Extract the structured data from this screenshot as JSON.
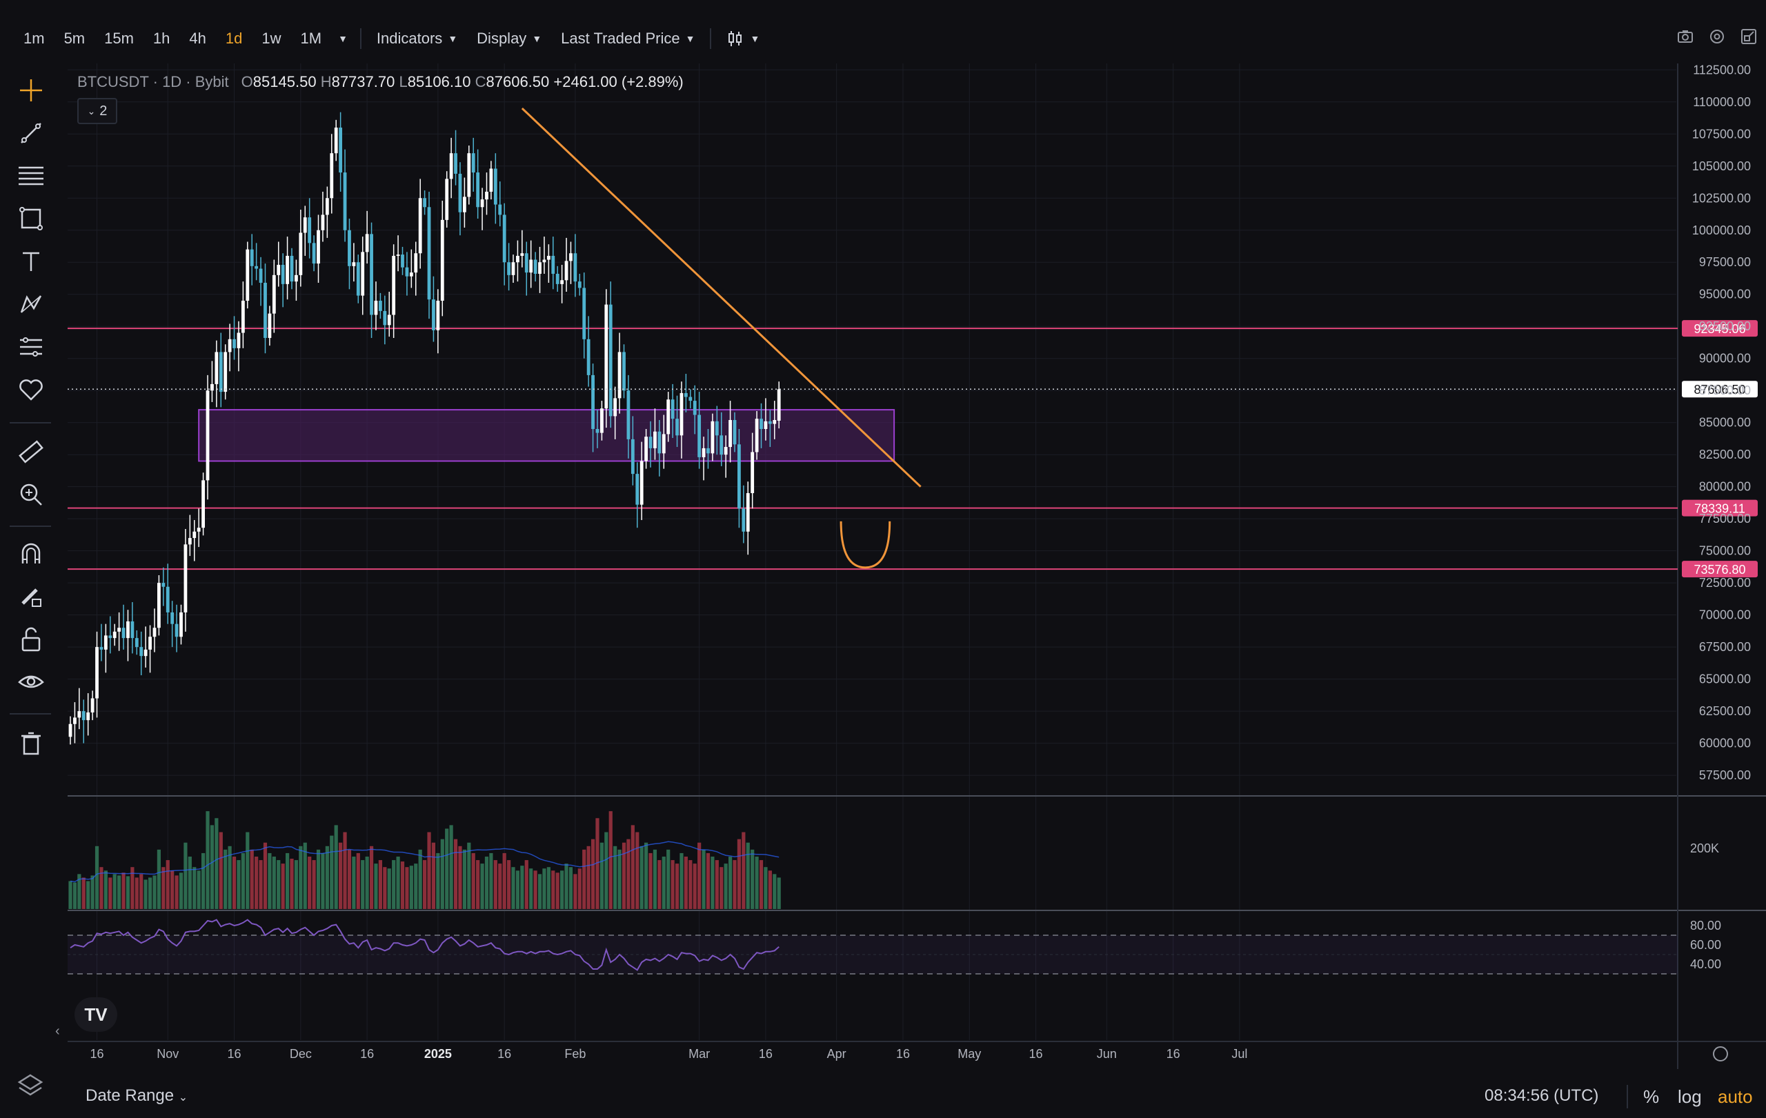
{
  "toolbar": {
    "timeframes": [
      "1m",
      "5m",
      "15m",
      "1h",
      "4h",
      "1d",
      "1w",
      "1M"
    ],
    "active_timeframe": "1d",
    "indicators_label": "Indicators",
    "display_label": "Display",
    "price_source_label": "Last Traded Price"
  },
  "legend": {
    "symbol": "BTCUSDT",
    "interval": "1D",
    "exchange": "Bybit",
    "open_label": "O",
    "open": "85145.50",
    "high_label": "H",
    "high": "87737.70",
    "low_label": "L",
    "low": "85106.10",
    "close_label": "C",
    "close": "87606.50",
    "change": "+2461.00 (+2.89%)",
    "collapse_count": "2"
  },
  "colors": {
    "background": "#0f0f13",
    "up_candle": "#ffffff",
    "down_candle": "#4fb3d0",
    "trendline": "#f0953a",
    "level_line": "#e0457a",
    "zone_fill": "#4a1f5e",
    "zone_border": "#9b3fcf",
    "rsi_line": "#7e57c2",
    "volume_up": "#2d6a4f",
    "volume_down": "#8b2e3a",
    "accent": "#f0a52a"
  },
  "chart_data": {
    "type": "candlestick",
    "y_axis_ticks": [
      "112500.00",
      "110000.00",
      "107500.00",
      "105000.00",
      "102500.00",
      "100000.00",
      "97500.00",
      "95000.00",
      "92500.00",
      "90000.00",
      "87500.00",
      "85000.00",
      "82500.00",
      "80000.00",
      "77500.00",
      "75000.00",
      "72500.00",
      "70000.00",
      "67500.00",
      "65000.00",
      "62500.00",
      "60000.00",
      "57500.00"
    ],
    "ylim": [
      56000,
      113000
    ],
    "x_axis_ticks": [
      {
        "label": "16",
        "date": "2024-10-16"
      },
      {
        "label": "Nov",
        "date": "2024-11-01"
      },
      {
        "label": "16",
        "date": "2024-11-16"
      },
      {
        "label": "Dec",
        "date": "2024-12-01"
      },
      {
        "label": "16",
        "date": "2024-12-16"
      },
      {
        "label": "2025",
        "date": "2025-01-01"
      },
      {
        "label": "16",
        "date": "2025-01-16"
      },
      {
        "label": "Feb",
        "date": "2025-02-01"
      },
      {
        "label": "Mar",
        "date": "2025-03-01"
      },
      {
        "label": "16",
        "date": "2025-03-16"
      },
      {
        "label": "Apr",
        "date": "2025-04-01"
      },
      {
        "label": "16",
        "date": "2025-04-16"
      },
      {
        "label": "May",
        "date": "2025-05-01"
      },
      {
        "label": "16",
        "date": "2025-05-16"
      },
      {
        "label": "Jun",
        "date": "2025-06-01"
      },
      {
        "label": "16",
        "date": "2025-06-16"
      },
      {
        "label": "Jul",
        "date": "2025-07-01"
      }
    ],
    "start_date": "2024-10-10",
    "closes": [
      61500,
      62000,
      62500,
      61800,
      62400,
      63500,
      67500,
      67300,
      68400,
      68200,
      68700,
      69000,
      68200,
      69500,
      68200,
      67500,
      66800,
      67300,
      68300,
      69000,
      72500,
      72200,
      70200,
      69300,
      68300,
      70200,
      75500,
      76000,
      76500,
      76800,
      80500,
      87500,
      88000,
      90500,
      87400,
      90500,
      91500,
      90800,
      92000,
      94500,
      98500,
      97200,
      97000,
      95900,
      91600,
      93500,
      96500,
      97300,
      95800,
      98000,
      96000,
      96500,
      99800,
      101000,
      99000,
      97400,
      100000,
      101200,
      102500,
      106000,
      108000,
      104500,
      100000,
      97200,
      97500,
      94900,
      98300,
      99700,
      93400,
      94500,
      93700,
      92600,
      93400,
      98000,
      98100,
      97100,
      96400,
      96700,
      98200,
      102500,
      101800,
      94600,
      92200,
      94500,
      100800,
      104000,
      106000,
      104400,
      101400,
      102600,
      106000,
      104500,
      101800,
      102400,
      103000,
      104800,
      102000,
      101200,
      97500,
      96500,
      97500,
      98000,
      98200,
      96700,
      97700,
      96600,
      97500,
      97700,
      98000,
      96600,
      95800,
      96100,
      97600,
      98200,
      96000,
      95500,
      91500,
      88700,
      84500,
      84200,
      86100,
      94200,
      85500,
      86900,
      90500,
      87500,
      83700,
      81000,
      78600,
      82000,
      83900,
      83000,
      84300,
      82600,
      84100,
      86800,
      85300,
      84000,
      87300,
      87000,
      86700,
      85600,
      82300,
      83000,
      82600,
      85100,
      84000,
      82500,
      83100,
      85200,
      83300,
      78300,
      76500,
      79500,
      82700,
      85300,
      84500,
      85100,
      84900,
      85200,
      87600
    ],
    "opens": [
      60500,
      61500,
      62000,
      62500,
      61800,
      62400,
      63500,
      67500,
      67300,
      68400,
      68200,
      68700,
      69000,
      68200,
      69500,
      68200,
      67500,
      66800,
      67300,
      68300,
      69000,
      72500,
      72200,
      70200,
      69300,
      68300,
      70200,
      75500,
      76000,
      76500,
      76800,
      80500,
      87500,
      88000,
      90500,
      87400,
      90500,
      91500,
      90800,
      92000,
      94500,
      98500,
      97200,
      97000,
      95900,
      91600,
      93500,
      96500,
      97300,
      95800,
      98000,
      96000,
      96500,
      99800,
      101000,
      99000,
      97400,
      100000,
      101200,
      102500,
      106000,
      108000,
      104500,
      100000,
      97200,
      97500,
      94900,
      98300,
      99700,
      93400,
      94500,
      93700,
      92600,
      93400,
      98000,
      98100,
      97100,
      96400,
      96700,
      98200,
      102500,
      101800,
      94600,
      92200,
      94500,
      100800,
      104000,
      106000,
      104400,
      101400,
      102600,
      106000,
      104500,
      101800,
      102400,
      103000,
      104800,
      102000,
      101200,
      97500,
      96500,
      97500,
      98000,
      98200,
      96700,
      97700,
      96600,
      97500,
      97700,
      98000,
      96600,
      95800,
      96100,
      97600,
      98200,
      96000,
      95500,
      91500,
      88700,
      84500,
      84200,
      86100,
      94200,
      85500,
      86900,
      90500,
      87500,
      83700,
      81000,
      78600,
      82000,
      83900,
      83000,
      84300,
      82600,
      84100,
      86800,
      85300,
      84000,
      87300,
      87000,
      86700,
      85600,
      82300,
      83000,
      82600,
      85100,
      84000,
      82500,
      83100,
      85200,
      83300,
      78300,
      76500,
      79500,
      82700,
      85300,
      84500,
      85100,
      84900,
      85145.5
    ],
    "last_price": "87606.50",
    "levels": [
      {
        "price": 92345.06,
        "label": "92345.06"
      },
      {
        "price": 78339.11,
        "label": "78339.11"
      },
      {
        "price": 73576.8,
        "label": "73576.80"
      }
    ],
    "zone": {
      "top": 86000,
      "bottom": 82000,
      "start_date": "2024-11-08",
      "end_date": "2025-04-14"
    },
    "trendline": {
      "start_date": "2025-01-20",
      "start_price": 109500,
      "end_date": "2025-04-20",
      "end_price": 80000
    },
    "volume_tick": "200K",
    "rsi_ticks": [
      "80.00",
      "60.00",
      "40.00"
    ],
    "rsi_band": [
      30,
      70
    ],
    "rsi": [
      57,
      60,
      59,
      58,
      62,
      64,
      72,
      71,
      73,
      72,
      73,
      74,
      70,
      73,
      68,
      65,
      62,
      64,
      67,
      69,
      76,
      74,
      66,
      62,
      59,
      64,
      73,
      74,
      74,
      75,
      80,
      85,
      84,
      86,
      79,
      81,
      82,
      80,
      81,
      83,
      86,
      82,
      81,
      78,
      70,
      73,
      76,
      77,
      73,
      77,
      72,
      73,
      76,
      78,
      74,
      70,
      74,
      75,
      77,
      80,
      81,
      74,
      66,
      61,
      62,
      57,
      63,
      65,
      55,
      57,
      56,
      54,
      56,
      62,
      62,
      60,
      59,
      60,
      62,
      66,
      65,
      55,
      52,
      55,
      62,
      66,
      68,
      64,
      59,
      61,
      65,
      62,
      58,
      59,
      60,
      62,
      57,
      56,
      51,
      50,
      52,
      53,
      53,
      51,
      53,
      51,
      53,
      53,
      54,
      51,
      50,
      51,
      53,
      54,
      50,
      49,
      43,
      40,
      35,
      35,
      39,
      55,
      42,
      45,
      50,
      46,
      40,
      37,
      34,
      42,
      45,
      44,
      46,
      43,
      46,
      50,
      48,
      45,
      52,
      51,
      51,
      49,
      43,
      45,
      44,
      49,
      47,
      44,
      46,
      50,
      46,
      37,
      35,
      42,
      47,
      52,
      51,
      53,
      53,
      54,
      58
    ],
    "volume": [
      40,
      38,
      50,
      45,
      40,
      48,
      90,
      60,
      55,
      45,
      50,
      48,
      52,
      47,
      60,
      45,
      50,
      42,
      45,
      48,
      85,
      60,
      70,
      55,
      48,
      52,
      95,
      75,
      60,
      55,
      80,
      140,
      120,
      130,
      110,
      85,
      90,
      75,
      70,
      80,
      110,
      85,
      75,
      70,
      95,
      80,
      75,
      70,
      65,
      80,
      72,
      70,
      90,
      95,
      75,
      70,
      85,
      80,
      90,
      105,
      120,
      95,
      110,
      85,
      75,
      80,
      70,
      75,
      90,
      65,
      70,
      60,
      58,
      70,
      75,
      68,
      60,
      62,
      65,
      85,
      70,
      110,
      95,
      80,
      100,
      115,
      120,
      100,
      90,
      85,
      95,
      80,
      70,
      65,
      75,
      80,
      70,
      65,
      80,
      70,
      60,
      55,
      62,
      70,
      58,
      55,
      50,
      58,
      60,
      55,
      52,
      55,
      65,
      60,
      50,
      58,
      85,
      90,
      100,
      130,
      95,
      110,
      140,
      90,
      85,
      95,
      100,
      120,
      110,
      90,
      95,
      80,
      85,
      70,
      75,
      85,
      70,
      65,
      80,
      75,
      70,
      65,
      95,
      85,
      80,
      75,
      70,
      60,
      65,
      75,
      70,
      100,
      110,
      95,
      85,
      75,
      70,
      60,
      55,
      50,
      45
    ]
  },
  "bottom": {
    "date_range_label": "Date Range",
    "clock": "08:34:56 (UTC)",
    "percent_label": "%",
    "log_label": "log",
    "auto_label": "auto",
    "logo_text": "TV"
  }
}
